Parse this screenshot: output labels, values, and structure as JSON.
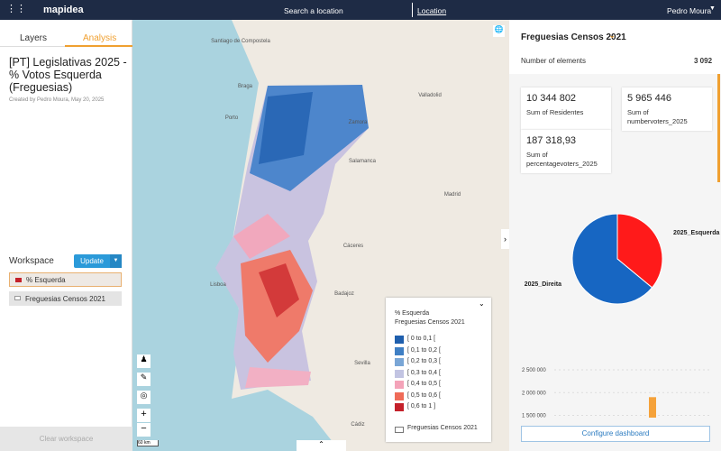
{
  "topbar": {
    "brand": "mapidea",
    "search": "Search a location",
    "location": "Location",
    "user": "Pedro Moura"
  },
  "left_panel": {
    "tabs": [
      "Layers",
      "Analysis"
    ],
    "title": "[PT] Legislativas 2025 - % Votos Esquerda (Freguesias)",
    "created": "Created by Pedro Moura, May 20, 2025",
    "workspace": "Workspace",
    "update": "Update",
    "layers": [
      "% Esquerda",
      "Freguesias Censos 2021"
    ],
    "clear": "Clear workspace"
  },
  "map": {
    "scale": "60 km",
    "places": [
      "Santiago de Compostela",
      "Braga",
      "Porto",
      "Zamora",
      "Salamanca",
      "Valladolid",
      "Madrid",
      "Cáceres",
      "Badajoz",
      "Lisboa",
      "Sevilla",
      "Cádiz"
    ]
  },
  "legend": {
    "title": "% Esquerda",
    "subtitle": "Freguesias Censos 2021",
    "items": [
      {
        "label": "[ 0 to 0,1 [",
        "color": "#1f5fad"
      },
      {
        "label": "[ 0,1 to 0,2 [",
        "color": "#3f7fc4"
      },
      {
        "label": "[ 0,2 to 0,3 [",
        "color": "#7aa6d6"
      },
      {
        "label": "[ 0,3 to 0,4 [",
        "color": "#c2c4e2"
      },
      {
        "label": "[ 0,4 to 0,5 [",
        "color": "#f4a3b9"
      },
      {
        "label": "[ 0,5 to 0,6 [",
        "color": "#ef6b58"
      },
      {
        "label": "[ 0,6 to 1 ]",
        "color": "#c4202a"
      }
    ],
    "footer": "Freguesias Censos 2021"
  },
  "dashboard": {
    "layer": "Freguesias Censos 2021",
    "count_label": "Number of elements",
    "count": "3 092",
    "cards": [
      {
        "value": "10 344 802",
        "label": "Sum of Residentes"
      },
      {
        "value": "5 965 446",
        "label": "Sum of numbervoters_2025"
      },
      {
        "value": "187 318,93",
        "label": "Sum of percentagevoters_2025"
      }
    ],
    "pie": {
      "type": "pie",
      "series": [
        {
          "name": "2025_Esquerda",
          "value": 36,
          "color": "#ff1a1a"
        },
        {
          "name": "2025_Direita",
          "value": 64,
          "color": "#1766c2"
        }
      ]
    },
    "bar": {
      "type": "bar",
      "ylim": [
        1450000,
        2600000
      ],
      "yticks": [
        {
          "value": 1500000,
          "label": "1 500 000"
        },
        {
          "value": 2000000,
          "label": "2 000 000"
        },
        {
          "value": 2500000,
          "label": "2 500 000"
        }
      ],
      "values": [
        1900000
      ],
      "color": "#f5a23a"
    },
    "configure": "Configure dashboard"
  }
}
